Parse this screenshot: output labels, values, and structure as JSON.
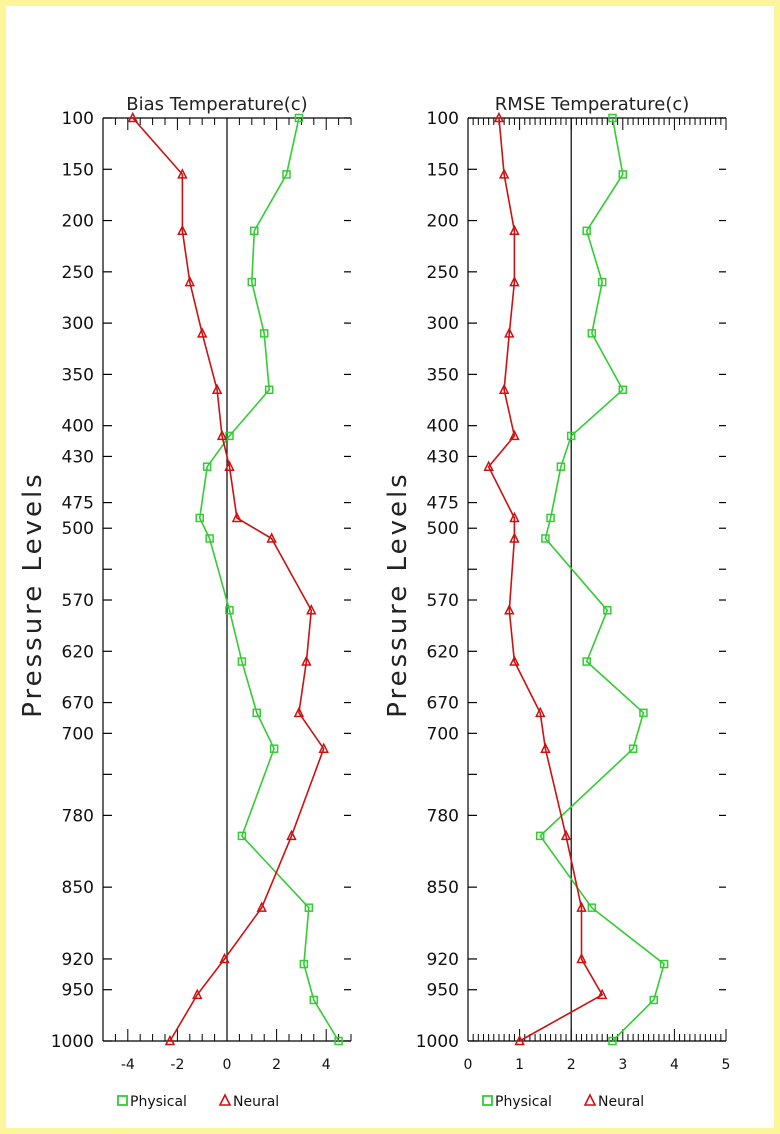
{
  "y_axis_title": "Pressure Levels",
  "legend": {
    "physical": "Physical",
    "neural": "Neural"
  },
  "colors": {
    "physical": "#33cc33",
    "neural": "#cc1111",
    "frame": "#fcf59c"
  },
  "chart_data": [
    {
      "type": "line",
      "title": "Bias   Temperature(c)",
      "ylabel": "Pressure Levels",
      "xlabel": "",
      "xlim": [
        -5,
        5
      ],
      "x_ticks": [
        -4,
        -2,
        0,
        2,
        4
      ],
      "ylim": [
        100,
        1000
      ],
      "y_tick_labels": [
        "100",
        "150",
        "200",
        "250",
        "300",
        "350",
        "400",
        "430",
        "475",
        "500",
        "570",
        "620",
        "670",
        "700",
        "780",
        "850",
        "920",
        "950",
        "1000"
      ],
      "reference_line_x": 0,
      "series": [
        {
          "name": "Physical",
          "marker": "square",
          "points": [
            [
              2.9,
              100
            ],
            [
              2.4,
              155
            ],
            [
              1.1,
              210
            ],
            [
              1.0,
              260
            ],
            [
              1.5,
              310
            ],
            [
              1.7,
              365
            ],
            [
              0.1,
              410
            ],
            [
              -0.8,
              440
            ],
            [
              -1.1,
              490
            ],
            [
              -0.7,
              510
            ],
            [
              0.1,
              580
            ],
            [
              0.6,
              630
            ],
            [
              1.2,
              680
            ],
            [
              1.9,
              715
            ],
            [
              0.6,
              800
            ],
            [
              3.3,
              870
            ],
            [
              3.1,
              925
            ],
            [
              3.5,
              960
            ],
            [
              4.5,
              1000
            ]
          ]
        },
        {
          "name": "Neural",
          "marker": "triangle",
          "points": [
            [
              -3.8,
              100
            ],
            [
              -1.8,
              155
            ],
            [
              -1.8,
              210
            ],
            [
              -1.5,
              260
            ],
            [
              -1.0,
              310
            ],
            [
              -0.4,
              365
            ],
            [
              -0.2,
              410
            ],
            [
              0.1,
              440
            ],
            [
              0.4,
              490
            ],
            [
              1.8,
              510
            ],
            [
              3.4,
              580
            ],
            [
              3.2,
              630
            ],
            [
              2.9,
              680
            ],
            [
              3.9,
              715
            ],
            [
              2.6,
              800
            ],
            [
              1.4,
              870
            ],
            [
              -0.1,
              920
            ],
            [
              -1.2,
              955
            ],
            [
              -2.3,
              1000
            ]
          ]
        }
      ]
    },
    {
      "type": "line",
      "title": "RMSE Temperature(c)",
      "ylabel": "Pressure Levels",
      "xlabel": "",
      "xlim": [
        0,
        5
      ],
      "x_ticks": [
        0,
        1,
        2,
        3,
        4,
        5
      ],
      "ylim": [
        100,
        1000
      ],
      "y_tick_labels": [
        "100",
        "150",
        "200",
        "250",
        "300",
        "350",
        "400",
        "430",
        "475",
        "500",
        "570",
        "620",
        "670",
        "700",
        "780",
        "850",
        "920",
        "950",
        "1000"
      ],
      "reference_line_x": 2,
      "series": [
        {
          "name": "Physical",
          "marker": "square",
          "points": [
            [
              2.8,
              100
            ],
            [
              3.0,
              155
            ],
            [
              2.3,
              210
            ],
            [
              2.6,
              260
            ],
            [
              2.4,
              310
            ],
            [
              3.0,
              365
            ],
            [
              2.0,
              410
            ],
            [
              1.8,
              440
            ],
            [
              1.6,
              490
            ],
            [
              1.5,
              510
            ],
            [
              2.7,
              580
            ],
            [
              2.3,
              630
            ],
            [
              3.4,
              680
            ],
            [
              3.2,
              715
            ],
            [
              1.4,
              800
            ],
            [
              2.4,
              870
            ],
            [
              3.8,
              925
            ],
            [
              3.6,
              960
            ],
            [
              2.8,
              1000
            ]
          ]
        },
        {
          "name": "Neural",
          "marker": "triangle",
          "points": [
            [
              0.6,
              100
            ],
            [
              0.7,
              155
            ],
            [
              0.9,
              210
            ],
            [
              0.9,
              260
            ],
            [
              0.8,
              310
            ],
            [
              0.7,
              365
            ],
            [
              0.9,
              410
            ],
            [
              0.4,
              440
            ],
            [
              0.9,
              490
            ],
            [
              0.9,
              510
            ],
            [
              0.8,
              580
            ],
            [
              0.9,
              630
            ],
            [
              1.4,
              680
            ],
            [
              1.5,
              715
            ],
            [
              1.9,
              800
            ],
            [
              2.2,
              870
            ],
            [
              2.2,
              920
            ],
            [
              2.6,
              955
            ],
            [
              1.0,
              1000
            ]
          ]
        }
      ]
    }
  ]
}
